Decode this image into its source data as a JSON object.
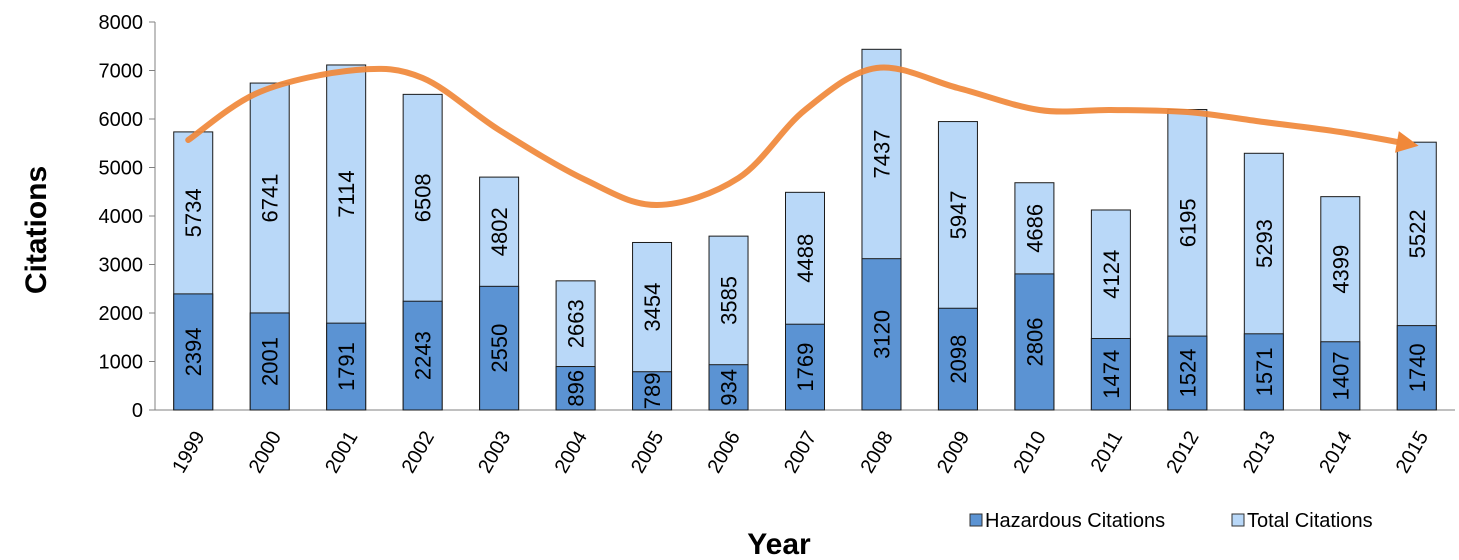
{
  "chart_data": {
    "type": "bar",
    "stacking": "overlay",
    "categories": [
      "1999",
      "2000",
      "2001",
      "2002",
      "2003",
      "2004",
      "2005",
      "2006",
      "2007",
      "2008",
      "2009",
      "2010",
      "2011",
      "2012",
      "2013",
      "2014",
      "2015"
    ],
    "series": [
      {
        "name": "Hazardous Citations",
        "values": [
          2394,
          2001,
          1791,
          2243,
          2550,
          896,
          789,
          934,
          1769,
          3120,
          2098,
          2806,
          1474,
          1524,
          1571,
          1407,
          1740
        ],
        "color": "#5b93d3"
      },
      {
        "name": "Total Citations",
        "values": [
          5734,
          6741,
          7114,
          6508,
          4802,
          2663,
          3454,
          3585,
          4488,
          7437,
          5947,
          4686,
          4124,
          6195,
          5293,
          4399,
          5522
        ],
        "color": "#b9d8f8"
      }
    ],
    "ylabel": "Citations",
    "xlabel": "Year",
    "ylim": [
      0,
      8000
    ],
    "yticks": [
      0,
      1000,
      2000,
      3000,
      4000,
      5000,
      6000,
      7000,
      8000
    ],
    "data_labels": true,
    "legend": "bottom-right",
    "trend_arrow": {
      "color": "#f0883a"
    }
  }
}
